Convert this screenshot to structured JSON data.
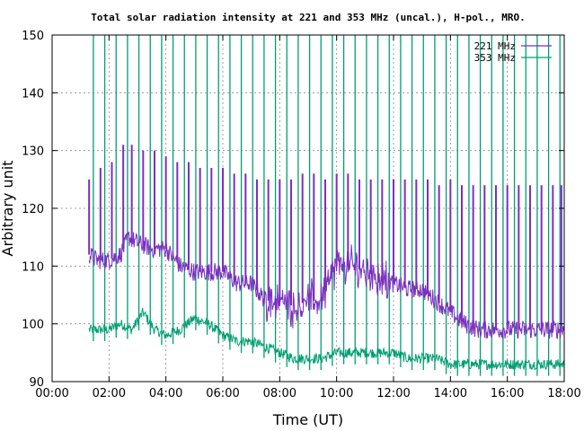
{
  "chart_data": {
    "type": "line",
    "title": "Total solar radiation intensity at 221 and 353 MHz (uncal.), H-pol., MRO.",
    "xlabel": "Time (UT)",
    "ylabel": "Arbitrary unit",
    "xlim": [
      0,
      18
    ],
    "ylim": [
      90,
      150
    ],
    "x_ticks": [
      "00:00",
      "02:00",
      "04:00",
      "06:00",
      "08:00",
      "10:00",
      "12:00",
      "14:00",
      "16:00",
      "18:00"
    ],
    "y_ticks": [
      "90",
      "100",
      "110",
      "120",
      "130",
      "140",
      "150"
    ],
    "grid": true,
    "legend_position": "top-right",
    "series": [
      {
        "name": "221 MHz",
        "color": "#7b2fbf",
        "baseline": [
          [
            1.3,
            112
          ],
          [
            1.6,
            111
          ],
          [
            2.0,
            111
          ],
          [
            2.4,
            112
          ],
          [
            2.7,
            115
          ],
          [
            3.0,
            114
          ],
          [
            3.5,
            113
          ],
          [
            4.0,
            113
          ],
          [
            4.5,
            110
          ],
          [
            5.0,
            109
          ],
          [
            5.5,
            109
          ],
          [
            6.0,
            109
          ],
          [
            6.5,
            107
          ],
          [
            7.0,
            107
          ],
          [
            7.5,
            104
          ],
          [
            8.0,
            104
          ],
          [
            8.5,
            103
          ],
          [
            9.0,
            104
          ],
          [
            9.4,
            104
          ],
          [
            9.7,
            107
          ],
          [
            10.0,
            110
          ],
          [
            10.5,
            110
          ],
          [
            11.0,
            109
          ],
          [
            11.5,
            108
          ],
          [
            12.0,
            107
          ],
          [
            12.5,
            106
          ],
          [
            13.0,
            106
          ],
          [
            13.5,
            104
          ],
          [
            14.0,
            102
          ],
          [
            14.5,
            100
          ],
          [
            15.0,
            99
          ],
          [
            16.0,
            99
          ],
          [
            17.0,
            99
          ],
          [
            18.0,
            99
          ]
        ],
        "calibration_pulses": [
          [
            1.3,
            125
          ],
          [
            1.7,
            127
          ],
          [
            2.1,
            128
          ],
          [
            2.5,
            131
          ],
          [
            2.8,
            131
          ],
          [
            3.2,
            130
          ],
          [
            3.6,
            130
          ],
          [
            4.0,
            129
          ],
          [
            4.4,
            128
          ],
          [
            4.8,
            128
          ],
          [
            5.2,
            127
          ],
          [
            5.6,
            127
          ],
          [
            6.0,
            127
          ],
          [
            6.4,
            126
          ],
          [
            6.8,
            126
          ],
          [
            7.2,
            125
          ],
          [
            7.6,
            125
          ],
          [
            8.0,
            125
          ],
          [
            8.4,
            125
          ],
          [
            8.8,
            126
          ],
          [
            9.2,
            126
          ],
          [
            9.6,
            125
          ],
          [
            10.0,
            126
          ],
          [
            10.4,
            126
          ],
          [
            10.8,
            125
          ],
          [
            11.2,
            125
          ],
          [
            11.6,
            125
          ],
          [
            12.0,
            125
          ],
          [
            12.4,
            125
          ],
          [
            12.8,
            125
          ],
          [
            13.2,
            125
          ],
          [
            13.6,
            124
          ],
          [
            14.0,
            125
          ],
          [
            14.4,
            124
          ],
          [
            14.8,
            124
          ],
          [
            15.2,
            124
          ],
          [
            15.6,
            124
          ],
          [
            16.0,
            124
          ],
          [
            16.4,
            124
          ],
          [
            16.8,
            124
          ],
          [
            17.2,
            124
          ],
          [
            17.6,
            124
          ],
          [
            17.9,
            124
          ]
        ]
      },
      {
        "name": "353 MHz",
        "color": "#009e73",
        "baseline": [
          [
            1.3,
            99
          ],
          [
            1.6,
            99
          ],
          [
            2.0,
            99
          ],
          [
            2.4,
            100
          ],
          [
            2.8,
            99
          ],
          [
            3.2,
            102
          ],
          [
            3.6,
            99
          ],
          [
            4.0,
            98
          ],
          [
            4.5,
            99
          ],
          [
            5.0,
            101
          ],
          [
            5.5,
            100
          ],
          [
            6.0,
            98
          ],
          [
            6.5,
            97
          ],
          [
            7.0,
            97
          ],
          [
            7.5,
            96
          ],
          [
            8.0,
            95
          ],
          [
            8.5,
            94
          ],
          [
            9.0,
            94
          ],
          [
            9.5,
            94
          ],
          [
            10.0,
            95
          ],
          [
            10.5,
            95
          ],
          [
            11.0,
            95
          ],
          [
            11.5,
            95
          ],
          [
            12.0,
            95
          ],
          [
            12.5,
            94
          ],
          [
            13.0,
            94
          ],
          [
            13.5,
            94
          ],
          [
            14.0,
            93
          ],
          [
            14.5,
            93
          ],
          [
            15.0,
            93
          ],
          [
            16.0,
            93
          ],
          [
            17.0,
            93
          ],
          [
            18.0,
            93
          ]
        ],
        "calibration_pulses": [
          [
            1.45,
            150
          ],
          [
            1.85,
            150
          ],
          [
            2.25,
            150
          ],
          [
            2.65,
            150
          ],
          [
            3.05,
            150
          ],
          [
            3.45,
            150
          ],
          [
            3.85,
            150
          ],
          [
            4.25,
            150
          ],
          [
            4.65,
            150
          ],
          [
            5.05,
            150
          ],
          [
            5.45,
            150
          ],
          [
            5.85,
            150
          ],
          [
            6.25,
            150
          ],
          [
            6.65,
            150
          ],
          [
            7.05,
            150
          ],
          [
            7.45,
            150
          ],
          [
            7.85,
            150
          ],
          [
            8.25,
            150
          ],
          [
            8.65,
            150
          ],
          [
            9.05,
            150
          ],
          [
            9.45,
            150
          ],
          [
            9.85,
            150
          ],
          [
            10.25,
            150
          ],
          [
            10.65,
            150
          ],
          [
            11.05,
            150
          ],
          [
            11.45,
            150
          ],
          [
            11.85,
            150
          ],
          [
            12.25,
            150
          ],
          [
            12.65,
            150
          ],
          [
            13.05,
            150
          ],
          [
            13.45,
            150
          ],
          [
            13.85,
            150
          ],
          [
            14.25,
            150
          ],
          [
            14.65,
            150
          ],
          [
            15.05,
            150
          ],
          [
            15.45,
            150
          ],
          [
            15.85,
            150
          ],
          [
            16.25,
            150
          ],
          [
            16.65,
            150
          ],
          [
            17.05,
            150
          ],
          [
            17.45,
            150
          ],
          [
            17.85,
            150
          ]
        ]
      }
    ]
  }
}
